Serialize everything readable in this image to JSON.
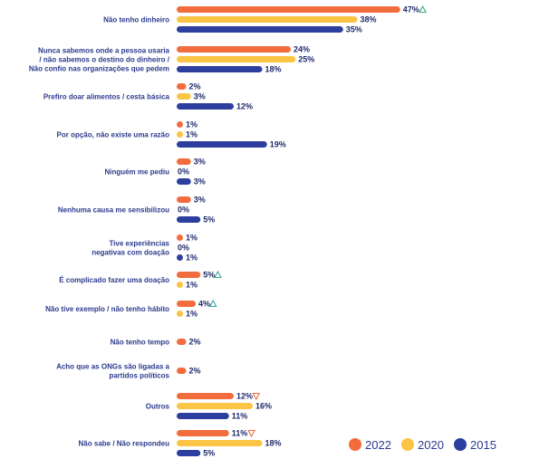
{
  "chart_data": {
    "type": "bar",
    "orientation": "horizontal",
    "categories": [
      [
        "Não tenho dinheiro"
      ],
      [
        "Nunca sabemos onde a pessoa usaria",
        "/ não sabemos o destino do dinheiro /",
        "Não confio nas organizações que pedem"
      ],
      [
        "Prefiro doar alimentos / cesta básica"
      ],
      [
        "Por opção, não existe uma razão"
      ],
      [
        "Ninguém me pediu"
      ],
      [
        "Nenhuma causa me sensibilizou"
      ],
      [
        "Tive experiências",
        "negativas com doação"
      ],
      [
        "É complicado fazer uma doação"
      ],
      [
        "Não tive exemplo / não tenho hábito"
      ],
      [
        "Não tenho tempo"
      ],
      [
        "Acho que as ONGs são ligadas a",
        "partidos políticos"
      ],
      [
        "Outros"
      ],
      [
        "Não sabe / Não respondeu"
      ]
    ],
    "series": [
      {
        "name": "2022",
        "color": "#f26c3d",
        "values": [
          47,
          24,
          2,
          1,
          3,
          3,
          1,
          5,
          4,
          2,
          2,
          12,
          11
        ],
        "labels": [
          "47%",
          "24%",
          "2%",
          "1%",
          "3%",
          "3%",
          "1%",
          "5%",
          "4%",
          "2%",
          "2%",
          "12%",
          "11%"
        ]
      },
      {
        "name": "2020",
        "color": "#fcc444",
        "values": [
          38,
          25,
          3,
          1,
          0,
          0,
          0,
          1,
          1,
          null,
          null,
          16,
          18
        ],
        "labels": [
          "38%",
          "25%",
          "3%",
          "1%",
          "0%",
          "0%",
          "0%",
          "1%",
          "1%",
          "",
          "",
          "16%",
          "18%"
        ]
      },
      {
        "name": "2015",
        "color": "#2c3e9e",
        "values": [
          35,
          18,
          12,
          19,
          3,
          5,
          1,
          null,
          null,
          null,
          null,
          11,
          5
        ],
        "labels": [
          "35%",
          "18%",
          "12%",
          "19%",
          "3%",
          "5%",
          "1%",
          "",
          "",
          "",
          "",
          "11%",
          "5%"
        ]
      }
    ],
    "markers": [
      {
        "category_index": 0,
        "symbol": "up"
      },
      {
        "category_index": 7,
        "symbol": "up"
      },
      {
        "category_index": 8,
        "symbol": "up"
      },
      {
        "category_index": 11,
        "symbol": "down"
      },
      {
        "category_index": 12,
        "symbol": "down"
      }
    ],
    "marker_colors": {
      "up": "#3aa889",
      "down": "#f26c3d"
    },
    "legend": {
      "position": "bottom-right",
      "entries": [
        "2022",
        "2020",
        "2015"
      ]
    },
    "xlim": [
      0,
      50
    ],
    "grid": false
  }
}
